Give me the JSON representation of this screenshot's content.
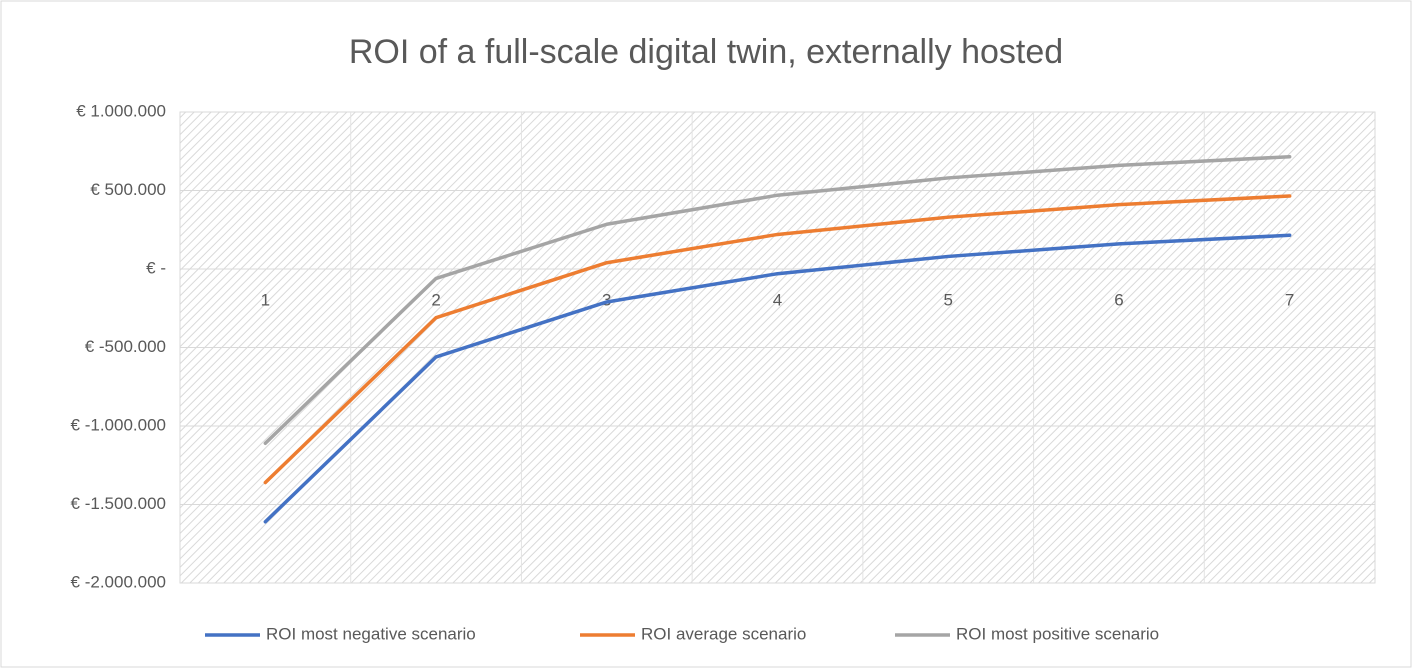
{
  "chart_data": {
    "type": "line",
    "title": "ROI of a full-scale digital twin, externally hosted",
    "categories": [
      "1",
      "2",
      "3",
      "4",
      "5",
      "6",
      "7"
    ],
    "series": [
      {
        "name": "ROI most negative scenario",
        "color": "#4472c4",
        "values": [
          -1610000,
          -560000,
          -210000,
          -30000,
          80000,
          160000,
          215000
        ]
      },
      {
        "name": "ROI average scenario",
        "color": "#ed7d31",
        "values": [
          -1360000,
          -310000,
          40000,
          220000,
          330000,
          410000,
          465000
        ]
      },
      {
        "name": "ROI most positive scenario",
        "color": "#a5a5a5",
        "values": [
          -1110000,
          -60000,
          285000,
          470000,
          580000,
          660000,
          715000
        ]
      }
    ],
    "ylim": [
      -2000000,
      1000000
    ],
    "yticks": [
      {
        "value": -2000000,
        "label": "€ -2.000.000"
      },
      {
        "value": -1500000,
        "label": "€ -1.500.000"
      },
      {
        "value": -1000000,
        "label": "€ -1.000.000"
      },
      {
        "value": -500000,
        "label": "€ -500.000"
      },
      {
        "value": 0,
        "label": "€ -"
      },
      {
        "value": 500000,
        "label": "€ 500.000"
      },
      {
        "value": 1000000,
        "label": "€ 1.000.000"
      }
    ],
    "grid": true,
    "legend": "bottom"
  }
}
